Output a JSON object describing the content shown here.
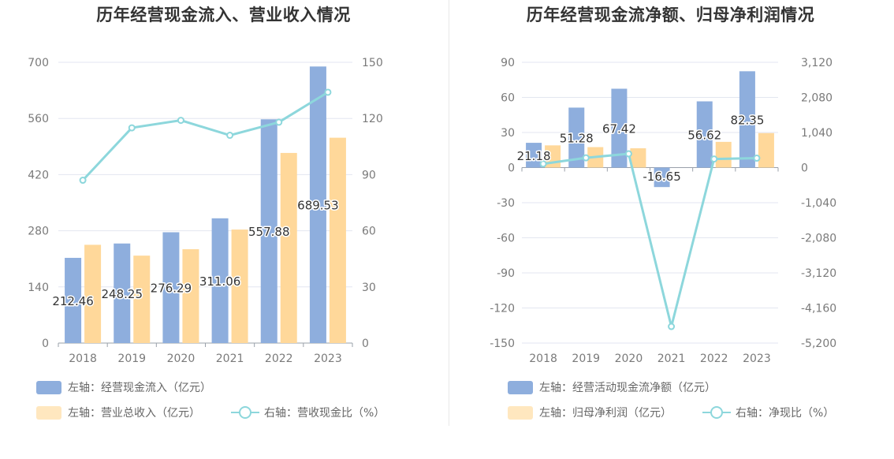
{
  "colors": {
    "bar1": "#8eaedd",
    "bar2": "#ffd89a",
    "line": "#8dd7dc",
    "grid": "#e3e6f0"
  },
  "chart_data": [
    {
      "type": "bar",
      "title": "历年经营现金流入、营业收入情况",
      "categories": [
        "2018",
        "2019",
        "2020",
        "2021",
        "2022",
        "2023"
      ],
      "y_left": {
        "min": 0,
        "max": 700,
        "ticks": [
          "0",
          "140",
          "280",
          "420",
          "560",
          "700"
        ]
      },
      "y_right": {
        "min": 0,
        "max": 150,
        "ticks": [
          "0",
          "30",
          "60",
          "90",
          "120",
          "150"
        ]
      },
      "series": [
        {
          "name": "左轴：经营现金流入（亿元）",
          "kind": "bar",
          "axis": "left",
          "values": [
            212.46,
            248.25,
            276.29,
            311.06,
            557.88,
            689.53
          ],
          "labels": [
            "212.46",
            "248.25",
            "276.29",
            "311.06",
            "557.88",
            "689.53"
          ]
        },
        {
          "name": "左轴：营业总收入（亿元）",
          "kind": "bar",
          "axis": "left",
          "values": [
            245,
            218,
            234,
            283,
            474,
            512
          ]
        },
        {
          "name": "右轴：营收现金比（%）",
          "kind": "line",
          "axis": "right",
          "values": [
            87,
            115,
            119,
            111,
            118,
            134
          ]
        }
      ],
      "legend_position": "bottom-left"
    },
    {
      "type": "bar",
      "title": "历年经营现金流净额、归母净利润情况",
      "categories": [
        "2018",
        "2019",
        "2020",
        "2021",
        "2022",
        "2023"
      ],
      "y_left": {
        "min": -150,
        "max": 90,
        "ticks": [
          "90",
          "60",
          "30",
          "0",
          "-30",
          "-60",
          "-90",
          "-120",
          "-150"
        ]
      },
      "y_right": {
        "min": -5200,
        "max": 3120,
        "ticks": [
          "3,120",
          "2,080",
          "1,040",
          "0",
          "-1,040",
          "-2,080",
          "-3,120",
          "-4,160",
          "-5,200"
        ]
      },
      "series": [
        {
          "name": "左轴：经营活动现金流净额（亿元）",
          "kind": "bar",
          "axis": "left",
          "values": [
            21.18,
            51.28,
            67.42,
            -16.65,
            56.62,
            82.35
          ],
          "labels": [
            "21.18",
            "51.28",
            "67.42",
            "-16.65",
            "56.62",
            "82.35"
          ]
        },
        {
          "name": "左轴：归母净利润（亿元）",
          "kind": "bar",
          "axis": "left",
          "values": [
            19,
            17.5,
            16.5,
            0,
            22,
            29.5
          ]
        },
        {
          "name": "右轴：净现比（%）",
          "kind": "line",
          "axis": "right",
          "values": [
            110,
            290,
            410,
            -4710,
            255,
            280
          ]
        }
      ],
      "legend_position": "bottom-left"
    }
  ]
}
